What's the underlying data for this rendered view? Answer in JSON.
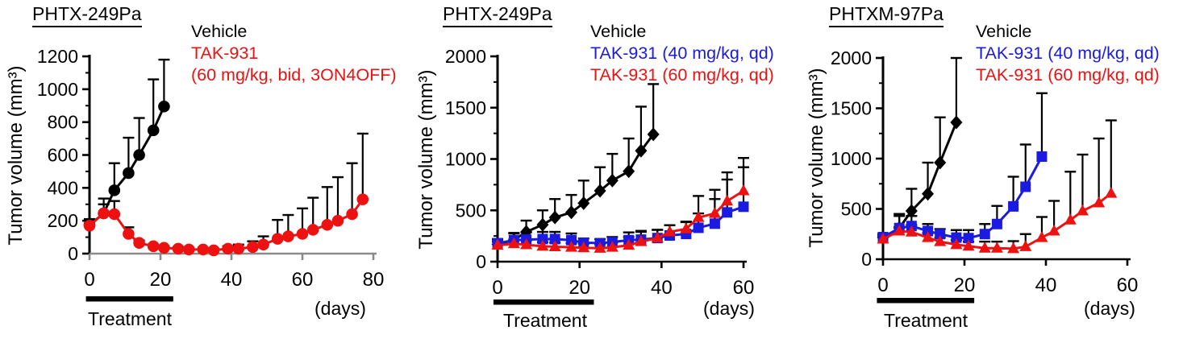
{
  "chart_data": [
    {
      "type": "line",
      "title": "PHTX-249Pa",
      "ylabel": "Tumor volume (mm³)",
      "xunit": "(days)",
      "treatment_label": "Treatment",
      "treatment_span": [
        -1,
        23.6
      ],
      "xlim": [
        0,
        80
      ],
      "ylim": [
        0,
        1200
      ],
      "xticks": [
        0,
        20,
        40,
        60,
        80
      ],
      "yticks": [
        0,
        200,
        400,
        600,
        800,
        1000,
        1200
      ],
      "axis_color": {
        "x": "#8a8a8a",
        "y": "#000000"
      },
      "legend": [
        {
          "label": "Vehicle",
          "color": "#000000"
        },
        {
          "label": "TAK-931",
          "color": "#ee1111"
        },
        {
          "label": "(60 mg/kg, bid, 3ON4OFF)",
          "color": "#ee1111"
        }
      ],
      "series": [
        {
          "name": "Vehicle",
          "color": "#000000",
          "marker": "circle",
          "x": [
            0,
            4,
            7,
            11,
            14,
            18,
            21
          ],
          "y": [
            175,
            245,
            385,
            490,
            600,
            750,
            895
          ],
          "err_top": [
            210,
            335,
            550,
            705,
            825,
            1060,
            1180
          ]
        },
        {
          "name": "TAK-931 (60 mg/kg, bid, 3ON4OFF)",
          "color": "#ee1111",
          "marker": "circle",
          "x": [
            0,
            4,
            7,
            11,
            14,
            18,
            21,
            25,
            28,
            32,
            35,
            39,
            42,
            46,
            49,
            53,
            56,
            60,
            63,
            67,
            70,
            74,
            77
          ],
          "y": [
            170,
            245,
            240,
            120,
            65,
            45,
            35,
            30,
            25,
            25,
            20,
            30,
            30,
            40,
            55,
            90,
            105,
            120,
            145,
            175,
            200,
            240,
            330
          ],
          "err_top": [
            205,
            300,
            320,
            160,
            80,
            55,
            45,
            40,
            35,
            35,
            30,
            45,
            55,
            75,
            105,
            205,
            235,
            275,
            340,
            405,
            465,
            550,
            730
          ]
        }
      ]
    },
    {
      "type": "line",
      "title": "PHTX-249Pa",
      "ylabel": "Tumor volume (mm³)",
      "xunit": "(days)",
      "treatment_label": "Treatment",
      "treatment_span": [
        -1,
        23.5
      ],
      "xlim": [
        0,
        60
      ],
      "ylim": [
        0,
        2000
      ],
      "xticks": [
        0,
        20,
        40,
        60
      ],
      "yticks": [
        0,
        500,
        1000,
        1500,
        2000
      ],
      "axis_color": {
        "x": "#000000",
        "y": "#000000"
      },
      "legend": [
        {
          "label": "Vehicle",
          "color": "#000000"
        },
        {
          "label": "TAK-931 (40 mg/kg, qd)",
          "color": "#1a1ae0"
        },
        {
          "label": "TAK-931 (60 mg/kg, qd)",
          "color": "#ee1111"
        }
      ],
      "series": [
        {
          "name": "Vehicle",
          "color": "#000000",
          "marker": "diamond",
          "x": [
            0,
            4,
            7,
            11,
            14,
            18,
            21,
            25,
            28,
            32,
            35,
            38
          ],
          "y": [
            170,
            210,
            290,
            360,
            430,
            480,
            570,
            690,
            790,
            880,
            1080,
            1240
          ],
          "err_top": [
            220,
            280,
            400,
            500,
            610,
            650,
            790,
            920,
            1050,
            1200,
            1510,
            1730
          ]
        },
        {
          "name": "TAK-931 (40 mg/kg, qd)",
          "color": "#1a1ae0",
          "marker": "square",
          "x": [
            0,
            4,
            7,
            11,
            14,
            18,
            21,
            25,
            28,
            32,
            35,
            39,
            42,
            46,
            49,
            53,
            56,
            60
          ],
          "y": [
            180,
            210,
            215,
            220,
            220,
            210,
            185,
            180,
            190,
            210,
            215,
            230,
            255,
            270,
            330,
            370,
            480,
            535
          ],
          "err_top": [
            215,
            275,
            285,
            290,
            290,
            275,
            225,
            220,
            240,
            285,
            300,
            310,
            355,
            385,
            470,
            610,
            800,
            920
          ]
        },
        {
          "name": "TAK-931 (60 mg/kg, qd)",
          "color": "#ee1111",
          "marker": "triangle",
          "x": [
            0,
            4,
            7,
            11,
            14,
            18,
            21,
            25,
            28,
            32,
            35,
            39,
            42,
            46,
            49,
            53,
            56,
            60
          ],
          "y": [
            160,
            175,
            165,
            150,
            145,
            140,
            135,
            130,
            140,
            160,
            195,
            230,
            290,
            320,
            430,
            470,
            590,
            690
          ],
          "err_top": [
            195,
            215,
            205,
            190,
            185,
            180,
            175,
            170,
            185,
            240,
            290,
            310,
            355,
            390,
            640,
            700,
            870,
            1010
          ]
        }
      ]
    },
    {
      "type": "line",
      "title": "PHTXM-97Pa",
      "ylabel": "Tumor volume (mm³)",
      "xunit": "(days)",
      "treatment_label": "Treatment",
      "treatment_span": [
        -1.5,
        22.4
      ],
      "xlim": [
        0,
        60
      ],
      "ylim": [
        0,
        2000
      ],
      "xticks": [
        0,
        20,
        40,
        60
      ],
      "yticks": [
        0,
        500,
        1000,
        1500,
        2000
      ],
      "axis_color": {
        "x": "#000000",
        "y": "#000000"
      },
      "legend": [
        {
          "label": "Vehicle",
          "color": "#000000"
        },
        {
          "label": "TAK-931 (40 mg/kg, qd)",
          "color": "#1a1ae0"
        },
        {
          "label": "TAK-931 (60 mg/kg, qd)",
          "color": "#ee1111"
        }
      ],
      "series": [
        {
          "name": "Vehicle",
          "color": "#000000",
          "marker": "diamond",
          "x": [
            0,
            4,
            7,
            11,
            14,
            18
          ],
          "y": [
            215,
            310,
            480,
            650,
            960,
            1360
          ],
          "err_top": [
            240,
            450,
            700,
            960,
            1410,
            2000
          ]
        },
        {
          "name": "TAK-931 (40 mg/kg, qd)",
          "color": "#1a1ae0",
          "marker": "square",
          "x": [
            0,
            4,
            7,
            11,
            14,
            18,
            21,
            25,
            28,
            32,
            35,
            39
          ],
          "y": [
            220,
            310,
            330,
            280,
            250,
            215,
            210,
            250,
            350,
            525,
            720,
            1020
          ],
          "err_top": [
            250,
            430,
            430,
            350,
            300,
            290,
            290,
            350,
            530,
            820,
            1140,
            1650
          ]
        },
        {
          "name": "TAK-931 (60 mg/kg, qd)",
          "color": "#ee1111",
          "marker": "triangle",
          "x": [
            0,
            4,
            7,
            11,
            14,
            18,
            21,
            25,
            28,
            32,
            35,
            39,
            42,
            46,
            49,
            53,
            56
          ],
          "y": [
            200,
            280,
            270,
            215,
            175,
            145,
            130,
            110,
            110,
            105,
            125,
            215,
            280,
            390,
            480,
            560,
            655
          ],
          "err_top": [
            230,
            320,
            340,
            260,
            215,
            190,
            175,
            175,
            175,
            180,
            250,
            420,
            580,
            870,
            1040,
            1200,
            1380
          ]
        }
      ]
    }
  ]
}
